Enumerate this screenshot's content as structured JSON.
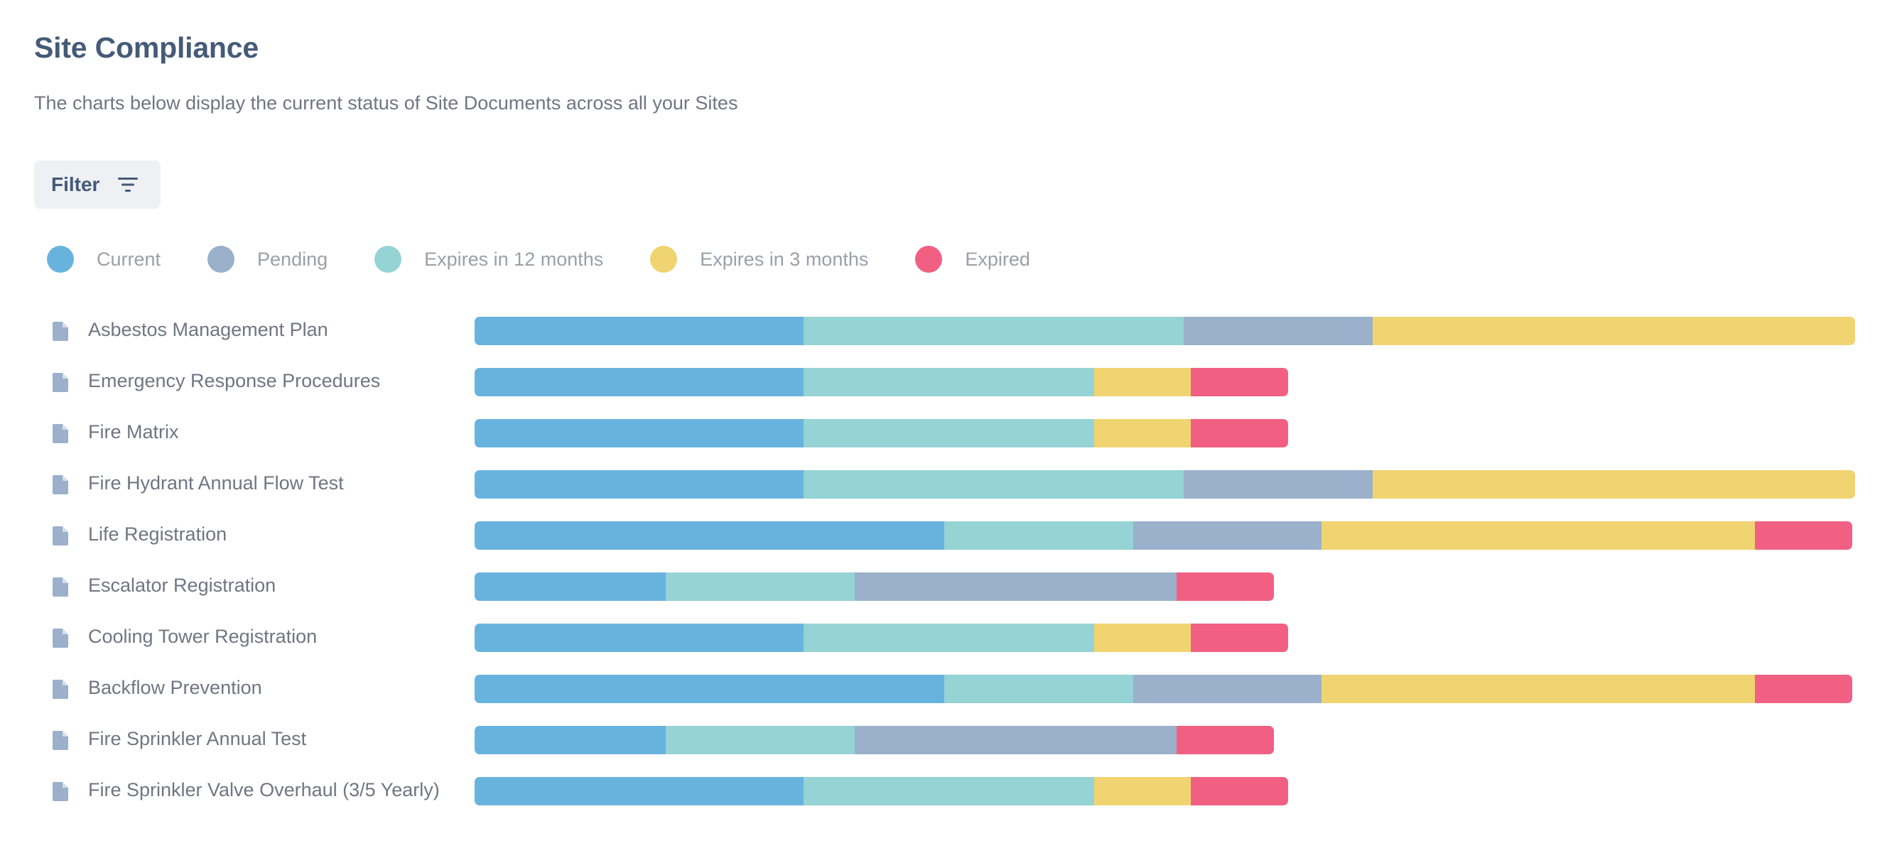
{
  "page": {
    "title": "Site Compliance",
    "subtitle": "The charts below display the current status of Site Documents across all your Sites",
    "filter_label": "Filter"
  },
  "legend": [
    {
      "label": "Current",
      "color": "#68b3de"
    },
    {
      "label": "Pending",
      "color": "#9ab0cb"
    },
    {
      "label": "Expires in 12 months",
      "color": "#95d3d4"
    },
    {
      "label": "Expires in 3 months",
      "color": "#f0d471"
    },
    {
      "label": "Expired",
      "color": "#f16083"
    }
  ],
  "chart_data": {
    "type": "bar",
    "orientation": "horizontal",
    "stacked": true,
    "title": "Site Compliance",
    "xlim": [
      0,
      28.5
    ],
    "grid": false,
    "legend_position": "top",
    "categories": [
      "Asbestos Management Plan",
      "Emergency Response Procedures",
      "Fire Matrix",
      "Fire Hydrant Annual Flow Test",
      "Life Registration",
      "Escalator Registration",
      "Cooling Tower Registration",
      "Backflow Prevention",
      "Fire Sprinkler Annual Test",
      "Fire Sprinkler Valve Overhaul (3/5 Yearly)"
    ],
    "series_order": [
      "Current",
      "Expires in 12 months",
      "Pending",
      "Expires in 3 months",
      "Expired"
    ],
    "series": [
      {
        "name": "Current",
        "color": "#68b3de",
        "values": [
          6.8,
          6.8,
          6.8,
          6.8,
          9.7,
          3.95,
          6.8,
          9.7,
          3.95,
          6.8
        ]
      },
      {
        "name": "Expires in 12 months",
        "color": "#95d3d4",
        "values": [
          7.85,
          6.0,
          6.0,
          7.85,
          3.9,
          3.9,
          6.0,
          3.9,
          3.9,
          6.0
        ]
      },
      {
        "name": "Pending",
        "color": "#9ab0cb",
        "values": [
          3.9,
          0,
          0,
          3.9,
          3.9,
          6.65,
          0,
          3.9,
          6.65,
          0
        ]
      },
      {
        "name": "Expires in 3 months",
        "color": "#f0d471",
        "values": [
          9.95,
          2.0,
          2.0,
          9.95,
          8.95,
          0,
          2.0,
          8.95,
          0,
          2.0
        ]
      },
      {
        "name": "Expired",
        "color": "#f16083",
        "values": [
          0,
          2.0,
          2.0,
          0,
          2.0,
          2.0,
          2.0,
          2.0,
          2.0,
          2.0
        ]
      }
    ]
  }
}
